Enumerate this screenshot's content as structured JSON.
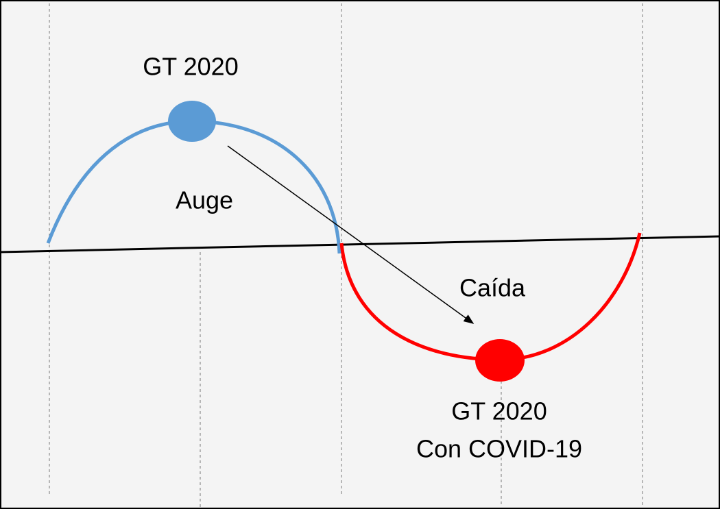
{
  "nodes": [
    {
      "label": "GT 2020"
    },
    {
      "label": "GT 2020",
      "sublabel": "Con COVID-19"
    }
  ],
  "phases": [
    "Auge",
    "Caída"
  ]
}
